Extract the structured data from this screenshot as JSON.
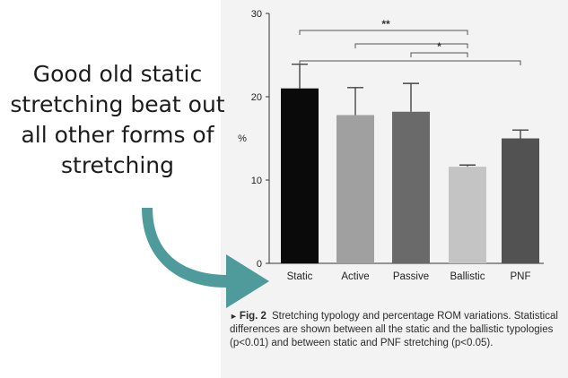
{
  "annotation": {
    "lines": [
      "Good old static",
      "stretching beat out",
      "all other forms of",
      "stretching"
    ]
  },
  "figure_caption": {
    "label": "Fig. 2",
    "text": "Stretching typology and percentage ROM variations. Statistical differences are shown between all the static and the ballistic typologies (p<0.01) and between static and PNF stretching (p<0.05)."
  },
  "colors": {
    "arrow": "#4f9a9b",
    "panel": "#f3f3f4"
  },
  "chart_data": {
    "type": "bar",
    "categories": [
      "Static",
      "Active",
      "Passive",
      "Ballistic",
      "PNF"
    ],
    "values": [
      21.0,
      17.8,
      18.2,
      11.6,
      15.0
    ],
    "errors": [
      2.9,
      3.3,
      3.4,
      0.2,
      1.0
    ],
    "bar_colors": [
      "#0a0a0a",
      "#a0a0a0",
      "#6a6a6a",
      "#c4c4c4",
      "#525252"
    ],
    "ylabel": "%",
    "ylim": [
      0,
      30
    ],
    "yticks": [
      0,
      10,
      20,
      30
    ],
    "grid": false,
    "significance": [
      {
        "from": "Static",
        "to": "Ballistic",
        "label": "**"
      },
      {
        "from": "Active",
        "to": "Ballistic",
        "label": ""
      },
      {
        "from": "Passive",
        "to": "Ballistic",
        "label": "*"
      },
      {
        "from": "Static",
        "to": "PNF",
        "label": ""
      }
    ]
  }
}
